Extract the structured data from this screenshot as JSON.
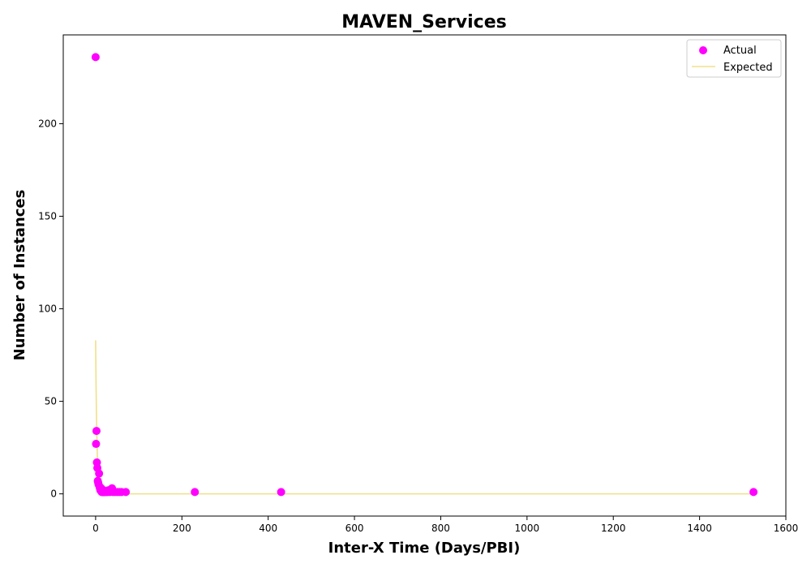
{
  "chart_data": {
    "type": "scatter",
    "title": "MAVEN_Services",
    "xlabel": "Inter-X Time (Days/PBI)",
    "ylabel": "Number of Instances",
    "xlim": [
      -75,
      1600
    ],
    "ylim": [
      -12,
      248
    ],
    "xticks": [
      0,
      200,
      400,
      600,
      800,
      1000,
      1200,
      1400,
      1600
    ],
    "yticks": [
      0,
      50,
      100,
      150,
      200
    ],
    "legend_position": "top-right",
    "colors": {
      "actual": "#ff00ff",
      "expected": "#f0e08a"
    },
    "series": [
      {
        "name": "Actual",
        "kind": "scatter",
        "x": [
          0,
          1,
          2,
          3,
          4,
          5,
          6,
          7,
          8,
          9,
          10,
          11,
          12,
          13,
          14,
          15,
          16,
          17,
          18,
          19,
          20,
          22,
          25,
          28,
          30,
          33,
          36,
          38,
          40,
          45,
          50,
          55,
          60,
          70,
          230,
          430,
          1525
        ],
        "y": [
          236,
          27,
          34,
          17,
          14,
          7,
          6,
          5,
          11,
          4,
          3,
          2,
          2,
          3,
          1,
          2,
          1,
          1,
          2,
          1,
          1,
          1,
          1,
          1,
          2,
          1,
          2,
          3,
          1,
          1,
          1,
          1,
          1,
          1,
          1,
          1,
          1
        ]
      },
      {
        "name": "Expected",
        "kind": "line",
        "x": [
          0,
          1,
          2,
          3,
          4,
          5,
          6,
          8,
          10,
          12,
          15,
          20,
          25,
          30,
          40,
          60,
          100,
          200,
          400,
          800,
          1200,
          1525
        ],
        "y": [
          83,
          59,
          42,
          30,
          21,
          15,
          10.5,
          5.3,
          2.6,
          1.3,
          0.5,
          0.1,
          0,
          0,
          0,
          0,
          0,
          0,
          0,
          0,
          0,
          0
        ]
      }
    ]
  }
}
